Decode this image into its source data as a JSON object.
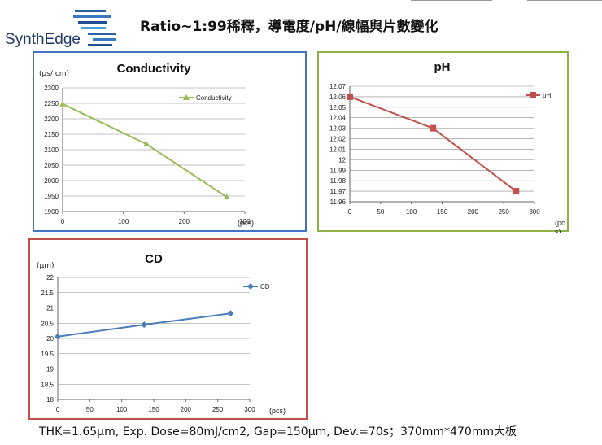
{
  "logo": {
    "text": "SynthEdge"
  },
  "header": {
    "title": "Ratio~1:99稀釋，導電度/pH/線幅與片數變化"
  },
  "footer": {
    "text": "THK=1.65μm, Exp. Dose=80mJ/cm2, Gap=150μm, Dev.=70s；370mm*470mm大板"
  },
  "colors": {
    "panel1": "#4472c4",
    "panel2": "#8db248",
    "panel3": "#c0504d",
    "series1": "#9bbb59",
    "series2": "#c0504d",
    "series3": "#4a7ebb"
  },
  "chart_data": [
    {
      "type": "line",
      "title": "Conductivity",
      "xlabel": "(pcs)",
      "ylabel": "(μs/ cm)",
      "xlim": [
        0,
        300
      ],
      "ylim": [
        1900,
        2300
      ],
      "xticks": [
        0,
        100,
        200,
        300
      ],
      "yticks": [
        1900,
        1950,
        2000,
        2050,
        2100,
        2150,
        2200,
        2250,
        2300
      ],
      "ytick_labels": [
        "1900",
        "1950",
        "2000",
        "2050",
        "2100",
        "2150",
        "2200",
        "2250",
        "2300"
      ],
      "grid": true,
      "legend": "top-right",
      "marker": "triangle",
      "series": [
        {
          "name": "Conductivity",
          "x": [
            0,
            138,
            270
          ],
          "y": [
            2248,
            2118,
            1947
          ]
        }
      ]
    },
    {
      "type": "line",
      "title": "pH",
      "xlabel": "(pc s)",
      "ylabel": "",
      "xlim": [
        0,
        300
      ],
      "ylim": [
        11.96,
        12.07
      ],
      "xticks": [
        0,
        50,
        100,
        150,
        200,
        250,
        300
      ],
      "yticks": [
        11.96,
        11.97,
        11.98,
        11.99,
        12.0,
        12.01,
        12.02,
        12.03,
        12.04,
        12.05,
        12.06,
        12.07
      ],
      "ytick_labels": [
        "11.96",
        "11.97",
        "11.98",
        "11.99",
        "12",
        "12.01",
        "12.02",
        "12.03",
        "12.04",
        "12.05",
        "12.06",
        "12.07"
      ],
      "grid": true,
      "legend": "top-right",
      "marker": "square",
      "series": [
        {
          "name": "pH",
          "x": [
            0,
            135,
            270
          ],
          "y": [
            12.06,
            12.03,
            11.97
          ]
        }
      ]
    },
    {
      "type": "line",
      "title": "CD",
      "xlabel": "(pcs)",
      "ylabel": "(μm)",
      "xlim": [
        0,
        300
      ],
      "ylim": [
        18,
        22
      ],
      "xticks": [
        0,
        50,
        100,
        150,
        200,
        250,
        300
      ],
      "yticks": [
        18,
        18.5,
        19,
        19.5,
        20,
        20.5,
        21,
        21.5,
        22
      ],
      "ytick_labels": [
        "18",
        "18.5",
        "19",
        "19.5",
        "20",
        "20.5",
        "21",
        "21.5",
        "22"
      ],
      "grid": true,
      "legend": "top-right",
      "marker": "diamond",
      "series": [
        {
          "name": "CD",
          "x": [
            0,
            135,
            270
          ],
          "y": [
            20.06,
            20.45,
            20.82
          ]
        }
      ]
    }
  ]
}
